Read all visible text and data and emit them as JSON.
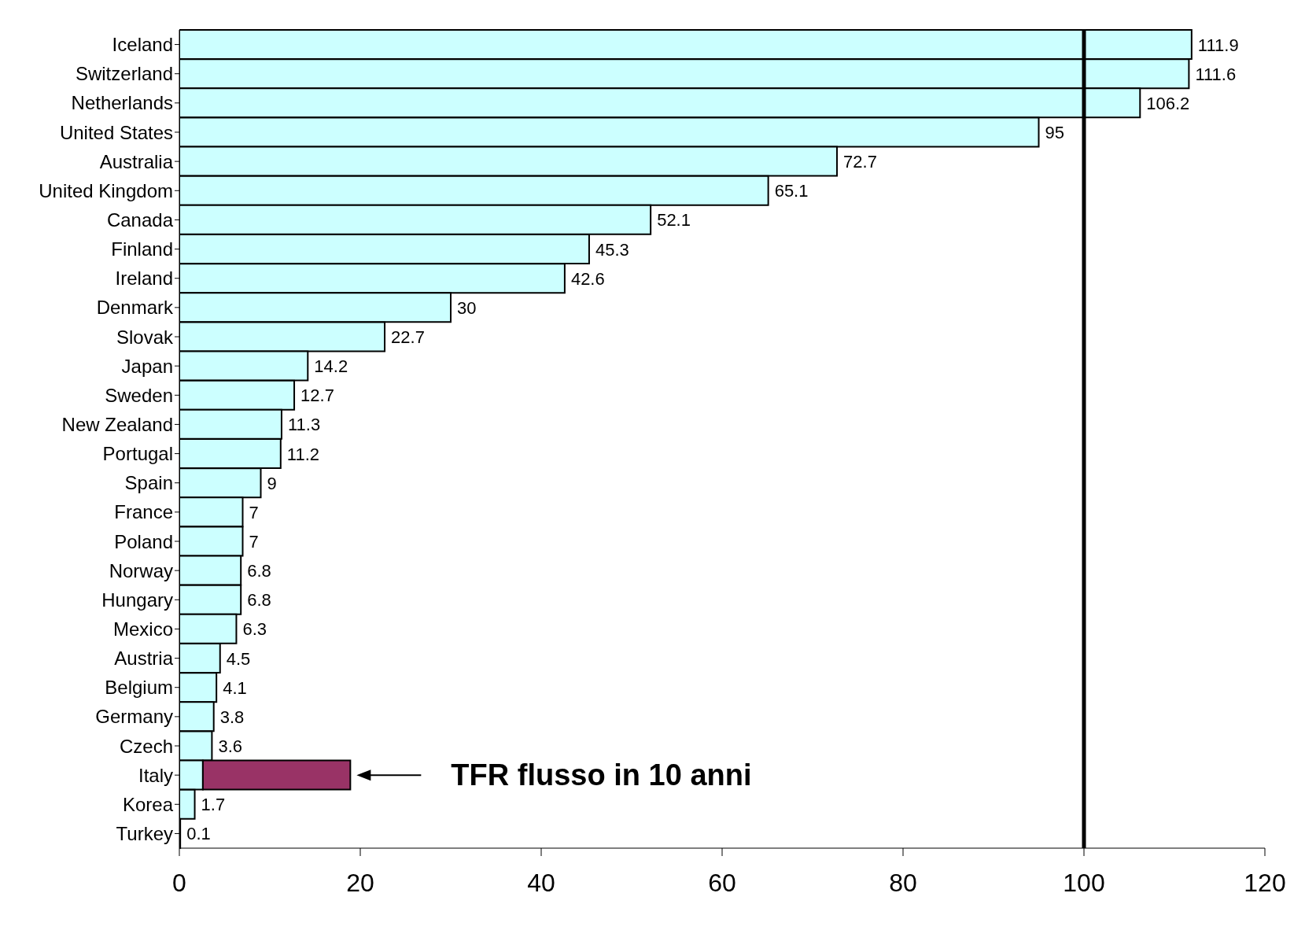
{
  "chart_data": {
    "type": "bar",
    "orientation": "horizontal",
    "stacked": true,
    "categories": [
      "Iceland",
      "Switzerland",
      "Netherlands",
      "United States",
      "Australia",
      "United Kingdom",
      "Canada",
      "Finland",
      "Ireland",
      "Denmark",
      "Slovak",
      "Japan",
      "Sweden",
      "New Zealand",
      "Portugal",
      "Spain",
      "France",
      "Poland",
      "Norway",
      "Hungary",
      "Mexico",
      "Austria",
      "Belgium",
      "Germany",
      "Czech",
      "Italy",
      "Korea",
      "Turkey"
    ],
    "series": [
      {
        "color": "#ccffff",
        "values": [
          111.9,
          111.6,
          106.2,
          95,
          72.7,
          65.1,
          52.1,
          45.3,
          42.6,
          30,
          22.7,
          14.2,
          12.7,
          11.3,
          11.2,
          9,
          7,
          7,
          6.8,
          6.8,
          6.3,
          4.5,
          4.1,
          3.8,
          3.6,
          2.6,
          1.7,
          0.1
        ],
        "value_labels": [
          "111.9",
          "111.6",
          "106.2",
          "95",
          "72.7",
          "65.1",
          "52.1",
          "45.3",
          "42.6",
          "30",
          "22.7",
          "14.2",
          "12.7",
          "11.3",
          "11.2",
          "9",
          "7",
          "7",
          "6.8",
          "6.8",
          "6.3",
          "4.5",
          "4.1",
          "3.8",
          "3.6",
          null,
          "1.7",
          "0.1"
        ]
      },
      {
        "color": "#993366",
        "values": [
          null,
          null,
          null,
          null,
          null,
          null,
          null,
          null,
          null,
          null,
          null,
          null,
          null,
          null,
          null,
          null,
          null,
          null,
          null,
          null,
          null,
          null,
          null,
          null,
          null,
          16.3,
          null,
          null
        ]
      }
    ],
    "xlim": [
      0,
      120
    ],
    "xticks": [
      0,
      20,
      40,
      60,
      80,
      100,
      120
    ],
    "ref_lines": [
      {
        "axis": "x",
        "value": 100,
        "color": "#000000"
      }
    ],
    "annotations": [
      "TFR flusso in 10 anni"
    ]
  }
}
